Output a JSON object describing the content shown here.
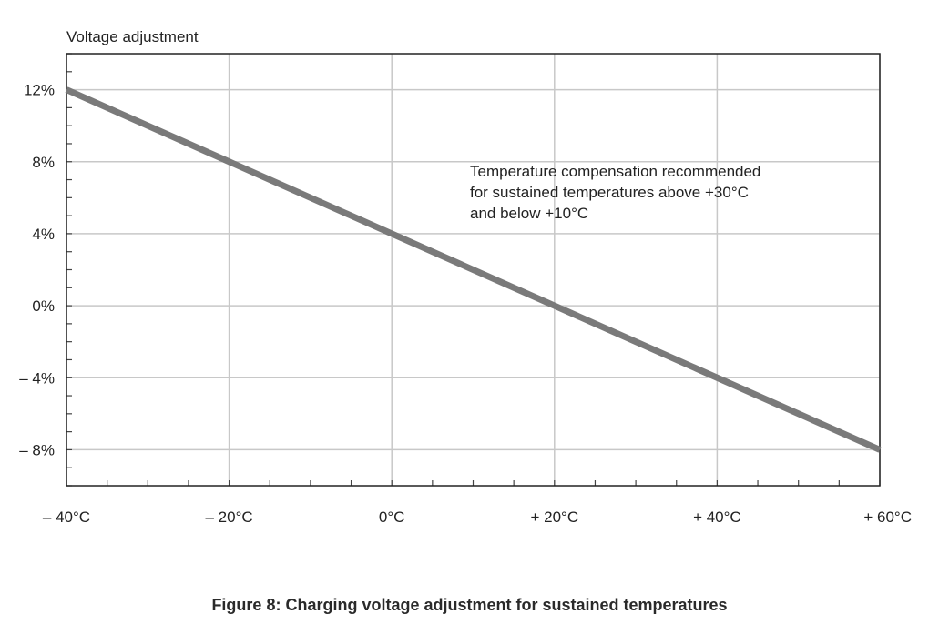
{
  "chart_data": {
    "type": "line",
    "ylabel": "Voltage adjustment",
    "xlabel": "",
    "x_ticks": [
      "– 40°C",
      "– 20°C",
      "0°C",
      "+ 20°C",
      "+ 40°C",
      "+ 60°C"
    ],
    "x_tick_values": [
      -40,
      -20,
      0,
      20,
      40,
      60
    ],
    "y_ticks": [
      "12%",
      "8%",
      "4%",
      "0%",
      "– 4%",
      "– 8%"
    ],
    "y_tick_values": [
      12,
      8,
      4,
      0,
      -4,
      -8
    ],
    "xlim": [
      -40,
      60
    ],
    "ylim": [
      -10,
      14
    ],
    "grid": true,
    "series": [
      {
        "x": [
          -40,
          -20,
          0,
          20,
          40,
          60
        ],
        "y": [
          12,
          8,
          4,
          0,
          -4,
          -8
        ],
        "color": "#7a7a7a"
      }
    ],
    "annotation": [
      "Temperature compensation recommended",
      "for sustained temperatures above +30°C",
      "and below +10°C"
    ]
  },
  "caption": "Figure 8: Charging voltage adjustment for sustained temperatures"
}
